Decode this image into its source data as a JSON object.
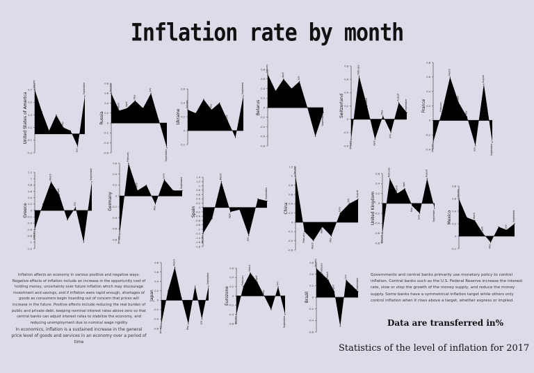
{
  "title": "Inflation rate by month",
  "note_unit": "Data are transferred in%",
  "footer": "Statistics of the level of inflation for 2017",
  "text_left": "Inflation affects an economy in various positive and negative ways. Negative effects of inflation include an increase in the opportunity cost of holding money, uncertainty over future inflation which may discourage investment and savings, and if inflation were rapid enough, shortages of goods as consumers begin hoarding out of concern that prices will increase in the future. Positive effects include reducing the real burden of public and private debt, keeping nominal interest rates above zero so that central banks can adjust interest rates to stabilize the economy, and reducing unemployment due to nominal wage rigidity",
  "text_left2": "In economics, inflation is a sustained increase in the general price level of goods and services in an economy over a period of time",
  "text_right": "Governments and central banks primarily use monetary policy to control inflation. Central banks such as the U.S. Federal Reserve increase the interest rate, slow or stop the growth of the money supply, and reduce the money supply. Some banks have a symmetrical inflation target while others only control inflation when it rises above a target, whether express or implied.",
  "colors": {
    "fill": "#000000",
    "background": "#dcdce8"
  },
  "chart_data": [
    {
      "type": "area",
      "country": "United States of America",
      "ylim": [
        -0.3,
        0.8
      ],
      "values": [
        0.7,
        0.35,
        0.05,
        0.3,
        0.1,
        0.05,
        -0.2,
        0.6
      ],
      "labels": [
        "January",
        "",
        "",
        "",
        "May",
        "",
        "July",
        "September"
      ]
    },
    {
      "type": "area",
      "country": "Russia",
      "ylim": [
        -0.6,
        0.8
      ],
      "values": [
        0.6,
        0.25,
        0.3,
        0.45,
        0.3,
        0.6,
        0.05,
        -0.5
      ],
      "labels": [
        "January",
        "March",
        "April",
        "May",
        "",
        "July",
        "",
        "September"
      ]
    },
    {
      "type": "area",
      "country": "Ukraine",
      "ylim": [
        -0.2,
        0.6
      ],
      "values": [
        0.3,
        0.25,
        0.45,
        0.3,
        0.4,
        0.15,
        -0.1,
        0.5
      ],
      "labels": [
        "January",
        "",
        "",
        "May",
        "",
        "July",
        "",
        "September"
      ]
    },
    {
      "type": "area",
      "country": "Belarus",
      "ylim": [
        -0.8,
        0.8
      ],
      "values": [
        0.7,
        0.35,
        0.6,
        0.4,
        0.55,
        0.0,
        -0.6,
        -0.1
      ],
      "labels": [
        "January",
        "",
        "April",
        "",
        "July",
        "",
        "",
        "September"
      ]
    },
    {
      "type": "area",
      "country": "Switzerland",
      "ylim": [
        -0.4,
        0.8
      ],
      "values": [
        -0.3,
        0.65,
        0.2,
        -0.3,
        0.05,
        -0.2,
        0.25,
        0.1
      ],
      "labels": [
        "January",
        "February",
        "March",
        "April",
        "May",
        "July",
        "August",
        "September"
      ]
    },
    {
      "type": "area",
      "country": "France",
      "ylim": [
        -0.4,
        0.8
      ],
      "values": [
        -0.3,
        0.1,
        0.6,
        0.25,
        0.05,
        -0.35,
        0.5,
        -0.3
      ],
      "labels": [
        "January",
        "February",
        "March",
        "April",
        "May",
        "July",
        "August",
        "September"
      ]
    },
    {
      "type": "area",
      "country": "Greece",
      "ylim": [
        -1.2,
        1.2
      ],
      "values": [
        -0.6,
        0.2,
        0.9,
        0.5,
        -0.3,
        0.1,
        -1.0,
        0.9
      ],
      "labels": [
        "January",
        "",
        "March",
        "April",
        "",
        "July",
        "",
        "September"
      ]
    },
    {
      "type": "area",
      "country": "Germany",
      "ylim": [
        -0.8,
        0.6
      ],
      "values": [
        -0.7,
        0.6,
        0.1,
        0.2,
        -0.15,
        0.3,
        0.1,
        0.1
      ],
      "labels": [
        "January",
        "February",
        "March",
        "",
        "May",
        "June",
        "",
        "September"
      ]
    },
    {
      "type": "area",
      "country": "Spain",
      "ylim": [
        -1.8,
        1.4
      ],
      "values": [
        -1.2,
        -0.5,
        1.2,
        -0.2,
        -0.1,
        -1.3,
        0.4,
        0.3
      ],
      "labels": [
        "January",
        "",
        "March",
        "April",
        "",
        "July",
        "",
        "September"
      ]
    },
    {
      "type": "area",
      "country": "China",
      "ylim": [
        -0.6,
        1.2
      ],
      "values": [
        1.0,
        -0.2,
        -0.4,
        -0.1,
        -0.3,
        0.2,
        0.4,
        0.5
      ],
      "labels": [
        "January",
        "February",
        "March",
        "April",
        "May",
        "June",
        "July",
        "August"
      ]
    },
    {
      "type": "area",
      "country": "United Kingdom",
      "ylim": [
        -0.8,
        0.6
      ],
      "values": [
        -0.6,
        0.5,
        0.2,
        0.3,
        -0.05,
        -0.2,
        0.5,
        -0.1
      ],
      "labels": [
        "January",
        "February",
        "March",
        "April",
        "May",
        "June",
        "August",
        "September"
      ]
    },
    {
      "type": "area",
      "country": "Mexico",
      "ylim": [
        -0.2,
        0.8
      ],
      "values": [
        0.6,
        0.3,
        0.25,
        0.05,
        -0.1,
        0.15,
        0.1,
        0.2
      ],
      "labels": [
        "January",
        "",
        "March",
        "April",
        "May",
        "",
        "July",
        "September"
      ]
    },
    {
      "type": "area",
      "country": "Japan",
      "ylim": [
        -0.6,
        0.8
      ],
      "values": [
        -0.5,
        0.2,
        0.7,
        0.05,
        -0.5,
        0.3,
        -0.4,
        0.3
      ],
      "labels": [
        "January",
        "",
        "March",
        "",
        "May",
        "",
        "July",
        "September"
      ]
    },
    {
      "type": "area",
      "country": "Eurozone",
      "ylim": [
        -0.6,
        0.6
      ],
      "values": [
        -0.4,
        0.2,
        0.5,
        0.3,
        0.0,
        -0.3,
        0.2,
        -0.4
      ],
      "labels": [
        "January",
        "February",
        "March",
        "April",
        "May",
        "",
        "July",
        "September"
      ]
    },
    {
      "type": "area",
      "country": "Brazil",
      "ylim": [
        -0.6,
        0.6
      ],
      "values": [
        0.5,
        0.4,
        0.3,
        0.1,
        -0.5,
        0.3,
        0.2,
        0.1
      ],
      "labels": [
        "January",
        "February",
        "March",
        "April",
        "",
        "July",
        "",
        "September"
      ]
    }
  ]
}
